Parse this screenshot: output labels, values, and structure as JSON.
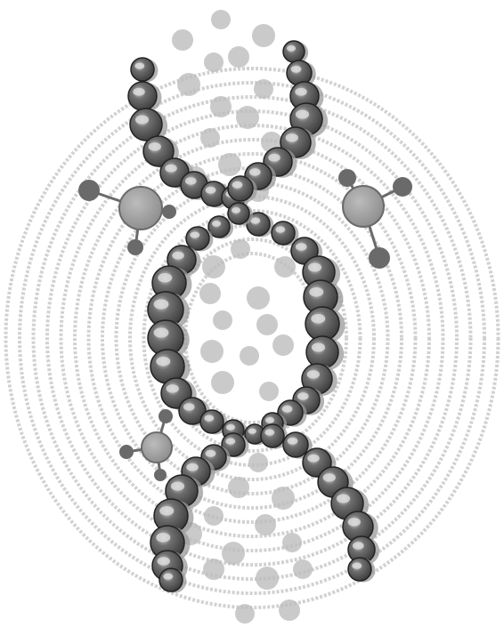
{
  "illustration": {
    "subject": "dna-double-helix-icon",
    "palette": {
      "background": "#ffffff",
      "ring": "#c9c9c9",
      "bead_dark": "#3a3a3a",
      "bead_mid": "#6f6f6f",
      "bead_highlight": "#d9d9d9",
      "bead_shadow": "#9a9a9a",
      "ghost_dot": "#bdbdbd",
      "molecule_center": "#8a8a8a",
      "molecule_satellite": "#6a6a6a"
    }
  }
}
